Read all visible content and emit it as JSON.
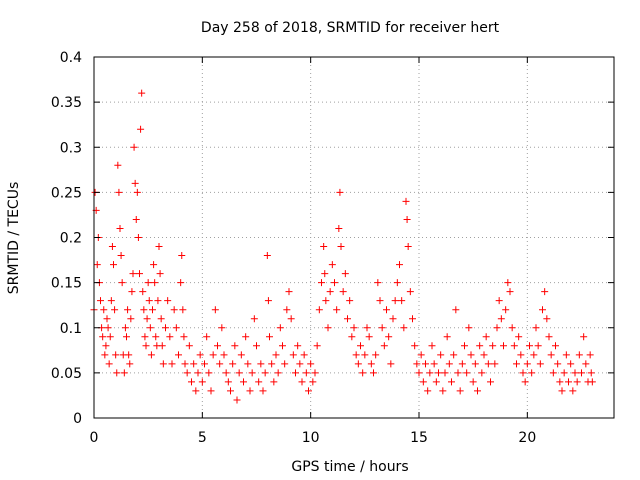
{
  "chart_data": {
    "type": "scatter",
    "title": "Day 258 of 2018, SRMTID for receiver hert",
    "xlabel": "GPS time / hours",
    "ylabel": "SRMTID / TECUs",
    "xlim": [
      0,
      24
    ],
    "ylim": [
      0,
      0.4
    ],
    "xticks": [
      0,
      5,
      10,
      15,
      20
    ],
    "xtick_labels": [
      "0",
      "5",
      "10",
      "15",
      "20"
    ],
    "yticks": [
      0,
      0.05,
      0.1,
      0.15,
      0.2,
      0.25,
      0.3,
      0.35,
      0.4
    ],
    "ytick_labels": [
      "0",
      "0.05",
      "0.1",
      "0.15",
      "0.2",
      "0.25",
      "0.3",
      "0.35",
      "0.4"
    ],
    "grid": true,
    "marker": "+",
    "color": "#ff0000",
    "series": [
      {
        "name": "SRMTID",
        "points": [
          [
            0.0,
            0.12
          ],
          [
            0.05,
            0.25
          ],
          [
            0.1,
            0.23
          ],
          [
            0.15,
            0.17
          ],
          [
            0.2,
            0.2
          ],
          [
            0.25,
            0.15
          ],
          [
            0.3,
            0.13
          ],
          [
            0.35,
            0.1
          ],
          [
            0.4,
            0.09
          ],
          [
            0.45,
            0.12
          ],
          [
            0.5,
            0.07
          ],
          [
            0.55,
            0.08
          ],
          [
            0.6,
            0.11
          ],
          [
            0.65,
            0.1
          ],
          [
            0.7,
            0.06
          ],
          [
            0.75,
            0.09
          ],
          [
            0.8,
            0.13
          ],
          [
            0.85,
            0.19
          ],
          [
            0.9,
            0.17
          ],
          [
            0.95,
            0.12
          ],
          [
            1.0,
            0.07
          ],
          [
            1.05,
            0.05
          ],
          [
            1.1,
            0.28
          ],
          [
            1.15,
            0.25
          ],
          [
            1.2,
            0.21
          ],
          [
            1.25,
            0.18
          ],
          [
            1.3,
            0.15
          ],
          [
            1.35,
            0.07
          ],
          [
            1.4,
            0.05
          ],
          [
            1.45,
            0.1
          ],
          [
            1.5,
            0.09
          ],
          [
            1.55,
            0.12
          ],
          [
            1.6,
            0.07
          ],
          [
            1.65,
            0.06
          ],
          [
            1.7,
            0.11
          ],
          [
            1.75,
            0.14
          ],
          [
            1.8,
            0.16
          ],
          [
            1.85,
            0.3
          ],
          [
            1.9,
            0.26
          ],
          [
            1.95,
            0.22
          ],
          [
            2.0,
            0.25
          ],
          [
            2.05,
            0.2
          ],
          [
            2.1,
            0.16
          ],
          [
            2.15,
            0.32
          ],
          [
            2.2,
            0.36
          ],
          [
            2.25,
            0.14
          ],
          [
            2.3,
            0.12
          ],
          [
            2.35,
            0.09
          ],
          [
            2.4,
            0.08
          ],
          [
            2.45,
            0.11
          ],
          [
            2.5,
            0.15
          ],
          [
            2.55,
            0.13
          ],
          [
            2.6,
            0.1
          ],
          [
            2.65,
            0.07
          ],
          [
            2.7,
            0.12
          ],
          [
            2.75,
            0.17
          ],
          [
            2.8,
            0.15
          ],
          [
            2.85,
            0.09
          ],
          [
            2.9,
            0.08
          ],
          [
            2.95,
            0.13
          ],
          [
            3.0,
            0.19
          ],
          [
            3.05,
            0.16
          ],
          [
            3.1,
            0.11
          ],
          [
            3.15,
            0.08
          ],
          [
            3.2,
            0.06
          ],
          [
            3.3,
            0.1
          ],
          [
            3.4,
            0.13
          ],
          [
            3.5,
            0.09
          ],
          [
            3.6,
            0.06
          ],
          [
            3.7,
            0.12
          ],
          [
            3.8,
            0.1
          ],
          [
            3.9,
            0.07
          ],
          [
            4.0,
            0.15
          ],
          [
            4.05,
            0.18
          ],
          [
            4.1,
            0.12
          ],
          [
            4.15,
            0.09
          ],
          [
            4.2,
            0.06
          ],
          [
            4.3,
            0.05
          ],
          [
            4.4,
            0.08
          ],
          [
            4.5,
            0.04
          ],
          [
            4.6,
            0.06
          ],
          [
            4.7,
            0.03
          ],
          [
            4.8,
            0.05
          ],
          [
            4.9,
            0.07
          ],
          [
            5.0,
            0.04
          ],
          [
            5.1,
            0.06
          ],
          [
            5.2,
            0.09
          ],
          [
            5.3,
            0.05
          ],
          [
            5.4,
            0.03
          ],
          [
            5.5,
            0.07
          ],
          [
            5.6,
            0.12
          ],
          [
            5.7,
            0.08
          ],
          [
            5.8,
            0.06
          ],
          [
            5.9,
            0.1
          ],
          [
            6.0,
            0.07
          ],
          [
            6.1,
            0.05
          ],
          [
            6.2,
            0.04
          ],
          [
            6.3,
            0.03
          ],
          [
            6.4,
            0.06
          ],
          [
            6.5,
            0.08
          ],
          [
            6.6,
            0.02
          ],
          [
            6.7,
            0.05
          ],
          [
            6.8,
            0.07
          ],
          [
            6.9,
            0.04
          ],
          [
            7.0,
            0.09
          ],
          [
            7.1,
            0.06
          ],
          [
            7.2,
            0.03
          ],
          [
            7.3,
            0.05
          ],
          [
            7.4,
            0.11
          ],
          [
            7.5,
            0.08
          ],
          [
            7.6,
            0.04
          ],
          [
            7.7,
            0.06
          ],
          [
            7.8,
            0.03
          ],
          [
            7.9,
            0.05
          ],
          [
            8.0,
            0.18
          ],
          [
            8.05,
            0.13
          ],
          [
            8.1,
            0.09
          ],
          [
            8.2,
            0.06
          ],
          [
            8.3,
            0.04
          ],
          [
            8.4,
            0.07
          ],
          [
            8.5,
            0.05
          ],
          [
            8.6,
            0.1
          ],
          [
            8.7,
            0.08
          ],
          [
            8.8,
            0.06
          ],
          [
            8.9,
            0.12
          ],
          [
            9.0,
            0.14
          ],
          [
            9.1,
            0.11
          ],
          [
            9.2,
            0.07
          ],
          [
            9.3,
            0.05
          ],
          [
            9.4,
            0.08
          ],
          [
            9.5,
            0.06
          ],
          [
            9.6,
            0.04
          ],
          [
            9.7,
            0.07
          ],
          [
            9.8,
            0.05
          ],
          [
            9.9,
            0.03
          ],
          [
            10.0,
            0.06
          ],
          [
            10.1,
            0.04
          ],
          [
            10.2,
            0.05
          ],
          [
            10.3,
            0.08
          ],
          [
            10.4,
            0.12
          ],
          [
            10.5,
            0.15
          ],
          [
            10.6,
            0.19
          ],
          [
            10.65,
            0.16
          ],
          [
            10.7,
            0.13
          ],
          [
            10.8,
            0.1
          ],
          [
            10.9,
            0.14
          ],
          [
            11.0,
            0.17
          ],
          [
            11.1,
            0.15
          ],
          [
            11.2,
            0.12
          ],
          [
            11.3,
            0.21
          ],
          [
            11.35,
            0.25
          ],
          [
            11.4,
            0.19
          ],
          [
            11.5,
            0.14
          ],
          [
            11.6,
            0.16
          ],
          [
            11.7,
            0.11
          ],
          [
            11.8,
            0.13
          ],
          [
            11.9,
            0.09
          ],
          [
            12.0,
            0.1
          ],
          [
            12.1,
            0.07
          ],
          [
            12.2,
            0.06
          ],
          [
            12.3,
            0.08
          ],
          [
            12.4,
            0.05
          ],
          [
            12.5,
            0.07
          ],
          [
            12.6,
            0.1
          ],
          [
            12.7,
            0.09
          ],
          [
            12.8,
            0.06
          ],
          [
            12.9,
            0.05
          ],
          [
            13.0,
            0.07
          ],
          [
            13.1,
            0.15
          ],
          [
            13.2,
            0.13
          ],
          [
            13.3,
            0.1
          ],
          [
            13.4,
            0.08
          ],
          [
            13.5,
            0.12
          ],
          [
            13.6,
            0.09
          ],
          [
            13.7,
            0.06
          ],
          [
            13.8,
            0.11
          ],
          [
            13.9,
            0.13
          ],
          [
            14.0,
            0.15
          ],
          [
            14.1,
            0.17
          ],
          [
            14.2,
            0.13
          ],
          [
            14.3,
            0.1
          ],
          [
            14.4,
            0.24
          ],
          [
            14.45,
            0.22
          ],
          [
            14.5,
            0.19
          ],
          [
            14.6,
            0.14
          ],
          [
            14.7,
            0.11
          ],
          [
            14.8,
            0.08
          ],
          [
            14.9,
            0.06
          ],
          [
            15.0,
            0.05
          ],
          [
            15.1,
            0.07
          ],
          [
            15.2,
            0.04
          ],
          [
            15.3,
            0.06
          ],
          [
            15.4,
            0.03
          ],
          [
            15.5,
            0.05
          ],
          [
            15.6,
            0.08
          ],
          [
            15.7,
            0.06
          ],
          [
            15.8,
            0.04
          ],
          [
            15.9,
            0.05
          ],
          [
            16.0,
            0.07
          ],
          [
            16.1,
            0.03
          ],
          [
            16.2,
            0.05
          ],
          [
            16.3,
            0.09
          ],
          [
            16.4,
            0.06
          ],
          [
            16.5,
            0.04
          ],
          [
            16.6,
            0.07
          ],
          [
            16.7,
            0.12
          ],
          [
            16.8,
            0.05
          ],
          [
            16.9,
            0.03
          ],
          [
            17.0,
            0.06
          ],
          [
            17.1,
            0.08
          ],
          [
            17.2,
            0.05
          ],
          [
            17.3,
            0.1
          ],
          [
            17.4,
            0.07
          ],
          [
            17.5,
            0.04
          ],
          [
            17.6,
            0.06
          ],
          [
            17.7,
            0.03
          ],
          [
            17.8,
            0.08
          ],
          [
            17.9,
            0.05
          ],
          [
            18.0,
            0.07
          ],
          [
            18.1,
            0.09
          ],
          [
            18.2,
            0.06
          ],
          [
            18.3,
            0.04
          ],
          [
            18.4,
            0.08
          ],
          [
            18.5,
            0.06
          ],
          [
            18.6,
            0.1
          ],
          [
            18.7,
            0.13
          ],
          [
            18.8,
            0.11
          ],
          [
            18.9,
            0.08
          ],
          [
            19.0,
            0.12
          ],
          [
            19.1,
            0.15
          ],
          [
            19.2,
            0.14
          ],
          [
            19.3,
            0.1
          ],
          [
            19.4,
            0.08
          ],
          [
            19.5,
            0.06
          ],
          [
            19.6,
            0.09
          ],
          [
            19.7,
            0.07
          ],
          [
            19.8,
            0.05
          ],
          [
            19.9,
            0.04
          ],
          [
            20.0,
            0.06
          ],
          [
            20.1,
            0.08
          ],
          [
            20.2,
            0.05
          ],
          [
            20.3,
            0.07
          ],
          [
            20.4,
            0.1
          ],
          [
            20.5,
            0.08
          ],
          [
            20.6,
            0.06
          ],
          [
            20.7,
            0.12
          ],
          [
            20.8,
            0.14
          ],
          [
            20.9,
            0.11
          ],
          [
            21.0,
            0.09
          ],
          [
            21.1,
            0.07
          ],
          [
            21.2,
            0.05
          ],
          [
            21.3,
            0.08
          ],
          [
            21.4,
            0.06
          ],
          [
            21.5,
            0.04
          ],
          [
            21.6,
            0.03
          ],
          [
            21.7,
            0.05
          ],
          [
            21.8,
            0.07
          ],
          [
            21.9,
            0.04
          ],
          [
            22.0,
            0.06
          ],
          [
            22.1,
            0.03
          ],
          [
            22.2,
            0.05
          ],
          [
            22.3,
            0.04
          ],
          [
            22.4,
            0.07
          ],
          [
            22.5,
            0.05
          ],
          [
            22.6,
            0.09
          ],
          [
            22.7,
            0.06
          ],
          [
            22.8,
            0.04
          ],
          [
            22.9,
            0.07
          ],
          [
            22.95,
            0.05
          ],
          [
            23.0,
            0.04
          ]
        ]
      }
    ]
  }
}
